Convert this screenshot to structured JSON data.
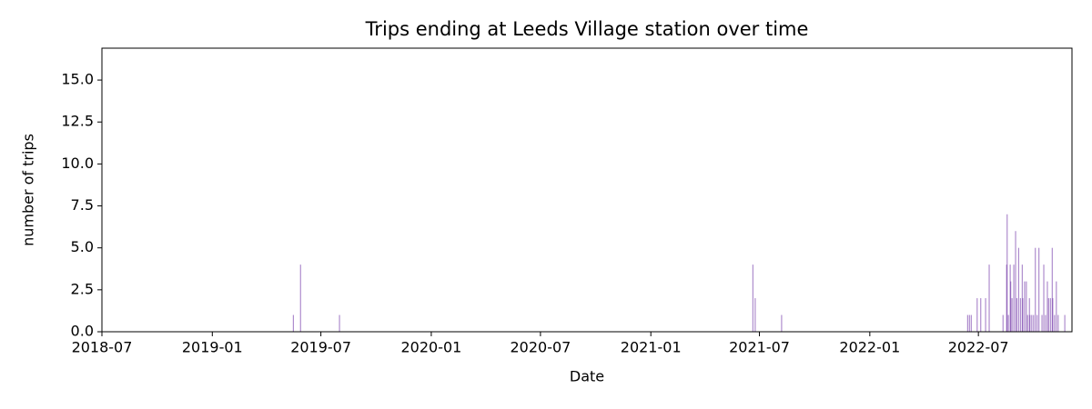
{
  "chart_data": {
    "type": "bar",
    "title": "Trips ending at Leeds Village station over time",
    "xlabel": "Date",
    "ylabel": "number of trips",
    "color": "#9467bd",
    "x": [
      "2019-05-16",
      "2019-05-28",
      "2019-08-01",
      "2021-06-20",
      "2021-06-24",
      "2021-08-07",
      "2022-06-13",
      "2022-06-16",
      "2022-06-19",
      "2022-06-29",
      "2022-07-05",
      "2022-07-13",
      "2022-07-19",
      "2022-08-11",
      "2022-08-17",
      "2022-08-18",
      "2022-08-20",
      "2022-08-23",
      "2022-08-24",
      "2022-08-26",
      "2022-08-29",
      "2022-09-01",
      "2022-09-03",
      "2022-09-06",
      "2022-09-09",
      "2022-09-12",
      "2022-09-13",
      "2022-09-16",
      "2022-09-19",
      "2022-09-21",
      "2022-09-24",
      "2022-09-25",
      "2022-09-28",
      "2022-10-01",
      "2022-10-04",
      "2022-10-07",
      "2022-10-10",
      "2022-10-15",
      "2022-10-18",
      "2022-10-21",
      "2022-10-24",
      "2022-10-26",
      "2022-10-29",
      "2022-11-01",
      "2022-11-02",
      "2022-11-05",
      "2022-11-08",
      "2022-11-11",
      "2022-11-22"
    ],
    "values": [
      1,
      4,
      1,
      4,
      2,
      1,
      1,
      1,
      1,
      2,
      2,
      2,
      4,
      1,
      4,
      7,
      1,
      4,
      3,
      2,
      4,
      6,
      2,
      5,
      2,
      4,
      2,
      3,
      3,
      1,
      2,
      1,
      1,
      1,
      5,
      1,
      5,
      1,
      4,
      1,
      3,
      2,
      2,
      5,
      2,
      1,
      3,
      1,
      1
    ],
    "xlim": [
      "2018-07-01",
      "2022-12-04"
    ],
    "xticks": [
      {
        "value": "2018-07-01",
        "label": "2018-07"
      },
      {
        "value": "2019-01-01",
        "label": "2019-01"
      },
      {
        "value": "2019-07-01",
        "label": "2019-07"
      },
      {
        "value": "2020-01-01",
        "label": "2020-01"
      },
      {
        "value": "2020-07-01",
        "label": "2020-07"
      },
      {
        "value": "2021-01-01",
        "label": "2021-01"
      },
      {
        "value": "2021-07-01",
        "label": "2021-07"
      },
      {
        "value": "2022-01-01",
        "label": "2022-01"
      },
      {
        "value": "2022-07-01",
        "label": "2022-07"
      }
    ],
    "ylim": [
      0,
      16.9
    ],
    "yticks": [
      {
        "value": 0,
        "label": "0.0"
      },
      2.5,
      {
        "value": 5,
        "label": "5.0"
      },
      7.5,
      {
        "value": 10,
        "label": "10.0"
      },
      12.5,
      {
        "value": 15,
        "label": "15.0"
      }
    ],
    "grid": false
  }
}
